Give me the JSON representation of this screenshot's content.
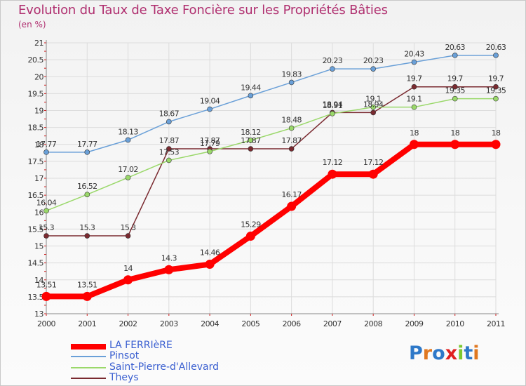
{
  "header": {
    "title": "Evolution du Taux de Taxe Foncière sur les Propriétés Bâties",
    "unit": "(en %)"
  },
  "logo": {
    "text": "Proxiti",
    "colors": [
      "#2e78c8",
      "#e07820",
      "#2e78c8",
      "#e02020",
      "#7cc830",
      "#2e78c8",
      "#e07820"
    ]
  },
  "chart_data": {
    "type": "line",
    "x": [
      2000,
      2001,
      2002,
      2003,
      2004,
      2005,
      2006,
      2007,
      2008,
      2009,
      2010,
      2011
    ],
    "ylim": [
      13,
      21
    ],
    "yticks": [
      "13",
      "13.5",
      "14",
      "14.5",
      "15",
      "15.5",
      "16",
      "16.5",
      "17",
      "17.5",
      "18",
      "18.5",
      "19",
      "19.5",
      "20",
      "20.5",
      "21"
    ],
    "grid": true,
    "legend_position": "bottom-left",
    "series": [
      {
        "name": "LA FERRIèRE",
        "color": "#ff0000",
        "values": [
          13.51,
          13.51,
          14,
          14.3,
          14.46,
          15.29,
          16.17,
          17.12,
          17.12,
          18,
          18,
          18
        ],
        "labels": [
          "13.51",
          "13.51",
          "14",
          "14.3",
          "14.46",
          "15.29",
          "16.17",
          "17.12",
          "17.12",
          "18",
          "18",
          "18"
        ]
      },
      {
        "name": "Pinsot",
        "color": "#6aa0d8",
        "values": [
          17.77,
          17.77,
          18.13,
          18.67,
          19.04,
          19.44,
          19.83,
          20.23,
          20.23,
          20.43,
          20.63,
          20.63
        ],
        "labels": [
          "17.77",
          "17.77",
          "18.13",
          "18.67",
          "19.04",
          "19.44",
          "19.83",
          "20.23",
          "20.23",
          "20.43",
          "20.63",
          "20.63"
        ]
      },
      {
        "name": "Saint-Pierre-d'Allevard",
        "color": "#9ad86a",
        "values": [
          16.04,
          16.52,
          17.02,
          17.53,
          17.79,
          18.12,
          18.48,
          18.91,
          19.1,
          19.1,
          19.35,
          19.35
        ],
        "labels": [
          "16.04",
          "16.52",
          "17.02",
          "17.53",
          "17.79",
          "18.12",
          "18.48",
          "18.91",
          "19.1",
          "19.1",
          "19.35",
          "19.35"
        ]
      },
      {
        "name": "Theys",
        "color": "#7a2a30",
        "values": [
          15.3,
          15.3,
          15.3,
          17.87,
          17.87,
          17.87,
          17.87,
          18.94,
          18.94,
          19.7,
          19.7,
          19.7
        ],
        "labels": [
          "15.3",
          "15.3",
          "15.3",
          "17.87",
          "17.87",
          "17.87",
          "17.87",
          "18.94",
          "18.94",
          "19.7",
          "19.7",
          "19.7"
        ]
      }
    ]
  }
}
